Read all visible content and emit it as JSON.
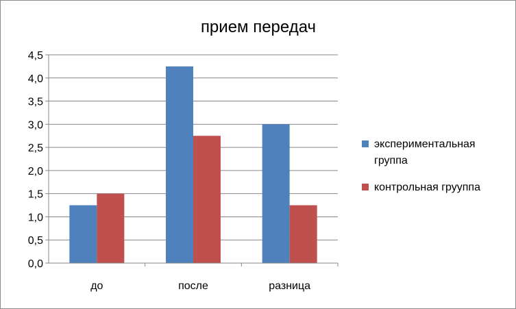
{
  "chart_data": {
    "type": "bar",
    "title": "прием передач",
    "categories": [
      "до",
      "после",
      "разница"
    ],
    "series": [
      {
        "name": "экспериментальная группа",
        "values": [
          1.25,
          4.25,
          3.0
        ],
        "color": "#4f81bd"
      },
      {
        "name": "контрольная грууппа",
        "values": [
          1.5,
          2.75,
          1.25
        ],
        "color": "#c0504d"
      }
    ],
    "y_ticks": [
      "0,0",
      "0,5",
      "1,0",
      "1,5",
      "2,0",
      "2,5",
      "3,0",
      "3,5",
      "4,0",
      "4,5"
    ],
    "ylim": [
      0,
      4.5
    ],
    "xlabel": "",
    "ylabel": "",
    "grid": true,
    "legend_position": "right"
  }
}
